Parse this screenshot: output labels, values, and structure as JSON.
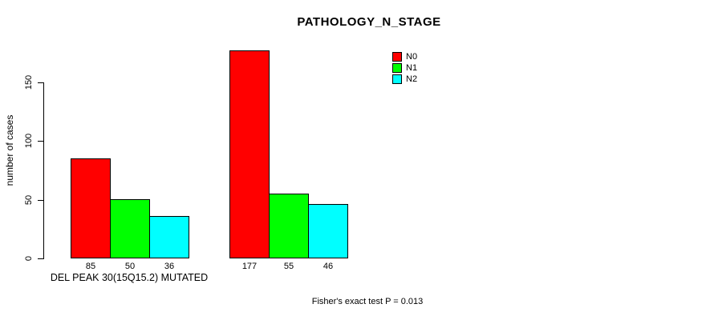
{
  "title": "PATHOLOGY_N_STAGE",
  "y_axis": {
    "label": "number of cases",
    "ticks": [
      0,
      50,
      100,
      150
    ]
  },
  "x_axis": {
    "group1_label": "DEL PEAK 30(15Q15.2) MUTATED"
  },
  "footnote": "Fisher's exact test P = 0.013",
  "legend": {
    "items": [
      {
        "label": "N0",
        "color": "#ff0000"
      },
      {
        "label": "N1",
        "color": "#00ff00"
      },
      {
        "label": "N2",
        "color": "#00ffff"
      }
    ]
  },
  "chart_data": {
    "type": "bar",
    "title": "PATHOLOGY_N_STAGE",
    "ylabel": "number of cases",
    "xlabel": "DEL PEAK 30(15Q15.2) MUTATED",
    "ylim": [
      0,
      180
    ],
    "yticks": [
      0,
      50,
      100,
      150
    ],
    "grid": false,
    "legend_position": "top-right",
    "bar_border_color": "#000000",
    "group_labels": [
      "DEL PEAK 30(15Q15.2) MUTATED",
      ""
    ],
    "series": [
      {
        "name": "N0",
        "color": "#ff0000",
        "values": [
          85,
          177
        ]
      },
      {
        "name": "N1",
        "color": "#00ff00",
        "values": [
          50,
          55
        ]
      },
      {
        "name": "N2",
        "color": "#00ffff",
        "values": [
          36,
          46
        ]
      }
    ],
    "bar_labels": [
      [
        85,
        50,
        36
      ],
      [
        177,
        55,
        46
      ]
    ],
    "annotation": "Fisher's exact test P = 0.013"
  }
}
